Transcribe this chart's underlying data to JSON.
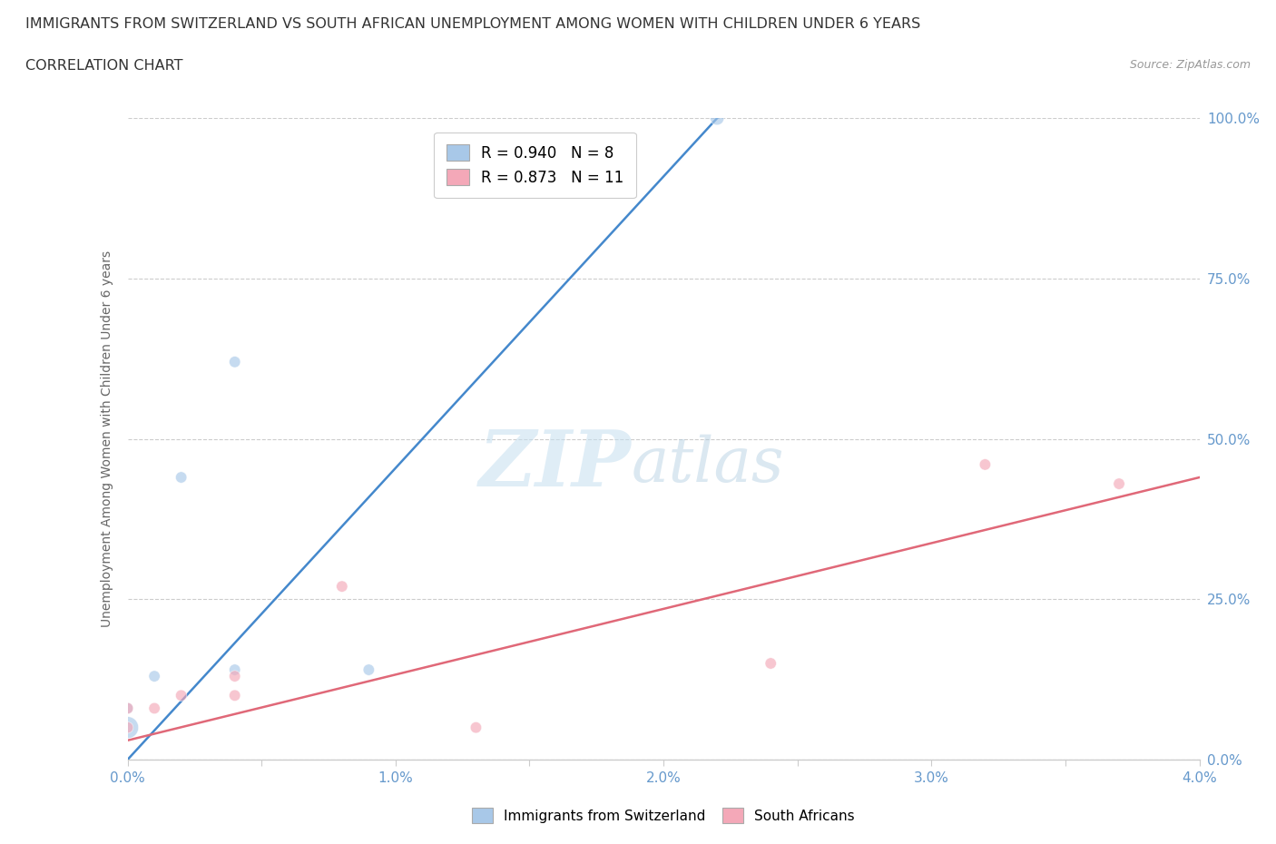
{
  "title": "IMMIGRANTS FROM SWITZERLAND VS SOUTH AFRICAN UNEMPLOYMENT AMONG WOMEN WITH CHILDREN UNDER 6 YEARS",
  "subtitle": "CORRELATION CHART",
  "source": "Source: ZipAtlas.com",
  "ylabel": "Unemployment Among Women with Children Under 6 years",
  "xlim": [
    0.0,
    0.04
  ],
  "ylim": [
    0.0,
    1.0
  ],
  "xticks": [
    0.0,
    0.005,
    0.01,
    0.015,
    0.02,
    0.025,
    0.03,
    0.035,
    0.04
  ],
  "xticklabels": [
    "0.0%",
    "",
    "1.0%",
    "",
    "2.0%",
    "",
    "3.0%",
    "",
    "4.0%"
  ],
  "yticks": [
    0.0,
    0.25,
    0.5,
    0.75,
    1.0
  ],
  "yticklabels": [
    "0.0%",
    "25.0%",
    "50.0%",
    "75.0%",
    "100.0%"
  ],
  "blue_scatter_x": [
    0.0,
    0.0,
    0.001,
    0.002,
    0.004,
    0.004,
    0.009,
    0.022
  ],
  "blue_scatter_y": [
    0.05,
    0.08,
    0.13,
    0.44,
    0.14,
    0.62,
    0.14,
    1.0
  ],
  "blue_scatter_size": [
    300,
    80,
    80,
    80,
    80,
    80,
    80,
    120
  ],
  "pink_scatter_x": [
    0.0,
    0.0,
    0.001,
    0.002,
    0.004,
    0.004,
    0.008,
    0.013,
    0.024,
    0.032,
    0.037
  ],
  "pink_scatter_y": [
    0.05,
    0.08,
    0.08,
    0.1,
    0.1,
    0.13,
    0.27,
    0.05,
    0.15,
    0.46,
    0.43
  ],
  "pink_scatter_size": [
    80,
    80,
    80,
    80,
    80,
    80,
    80,
    80,
    80,
    80,
    80
  ],
  "blue_line_x": [
    0.0,
    0.022
  ],
  "blue_line_y": [
    0.0,
    1.0
  ],
  "pink_line_x": [
    0.0,
    0.04
  ],
  "pink_line_y": [
    0.03,
    0.44
  ],
  "blue_color": "#a8c8e8",
  "pink_color": "#f4a8b8",
  "blue_line_color": "#4488cc",
  "pink_line_color": "#e06878",
  "blue_r": "0.940",
  "blue_n": "8",
  "pink_r": "0.873",
  "pink_n": "11",
  "legend_label_blue": "Immigrants from Switzerland",
  "legend_label_pink": "South Africans",
  "watermark_zip": "ZIP",
  "watermark_atlas": "atlas",
  "background_color": "#ffffff",
  "grid_color": "#cccccc",
  "title_color": "#333333",
  "axis_label_color": "#666666",
  "tick_color": "#6699cc",
  "figsize": [
    14.06,
    9.3
  ],
  "dpi": 100
}
